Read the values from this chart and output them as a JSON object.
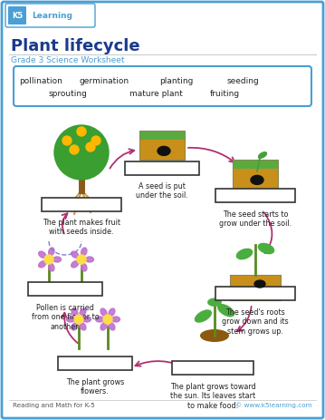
{
  "title": "Plant lifecycle",
  "subtitle": "Grade 3 Science Worksheet",
  "bg_color": "#ffffff",
  "border_color": "#4a9fd4",
  "word_box_words_row1": [
    "pollination",
    "germination",
    "planting",
    "seeding"
  ],
  "word_box_words_row2": [
    "sprouting",
    "mature plant",
    "fruiting"
  ],
  "footer_left": "Reading and Math for K-5",
  "footer_right": "© www.k5learning.com",
  "arrow_color": "#b03070",
  "box_outline": "#333333",
  "title_color": "#1a3a8c",
  "subtitle_color": "#4a9fd4"
}
